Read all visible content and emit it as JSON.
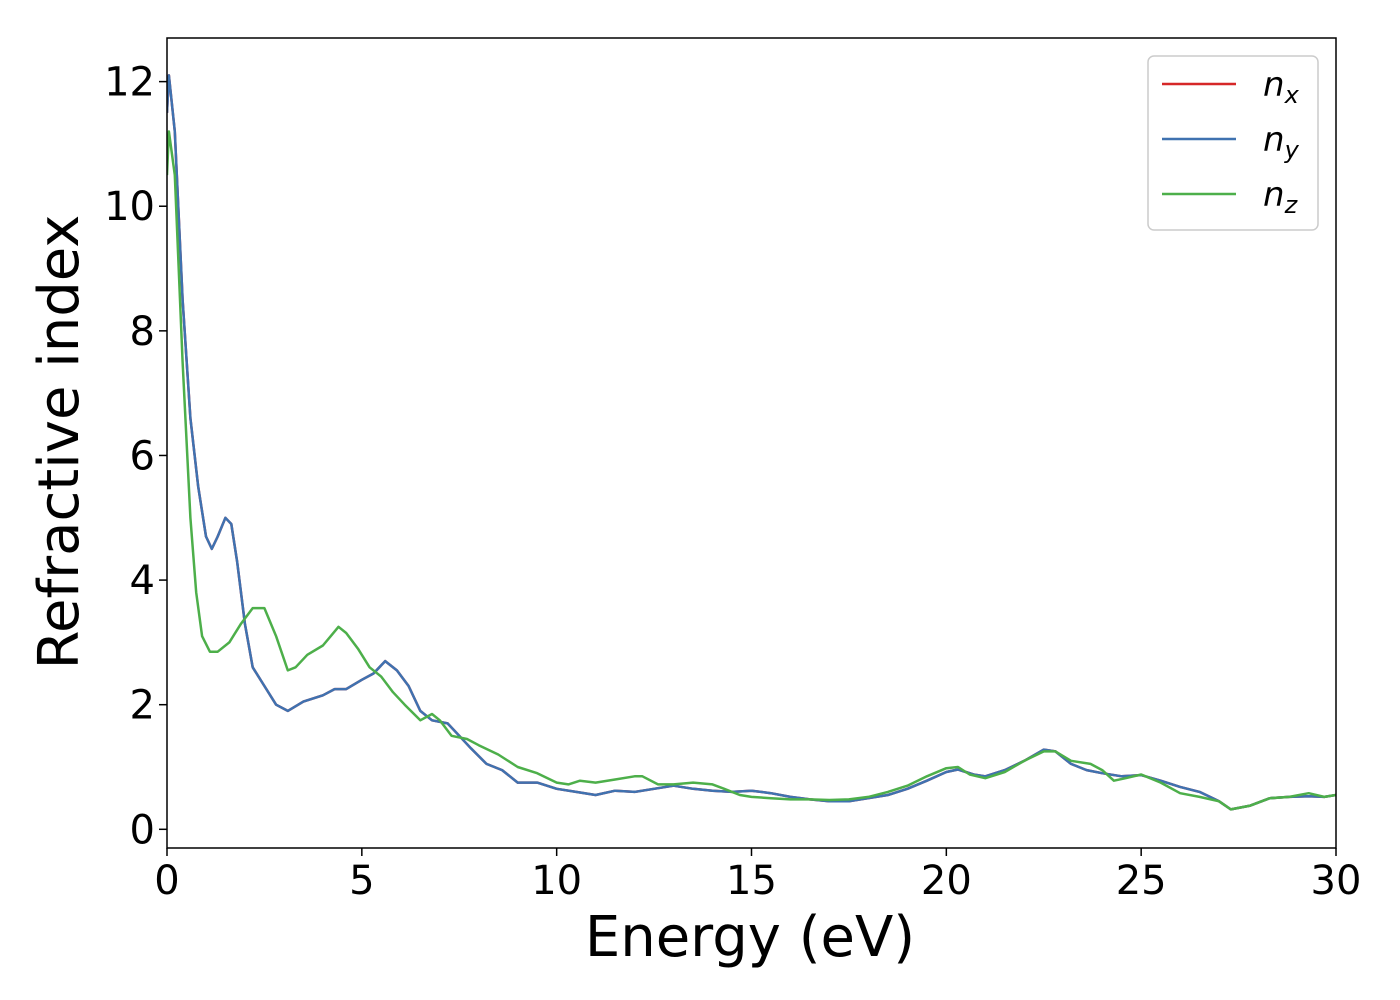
{
  "chart_data": {
    "type": "line",
    "title": "",
    "xlabel": "Energy (eV)",
    "ylabel": "Refractive index",
    "xlim": [
      0,
      30
    ],
    "ylim": [
      -0.3,
      12.7
    ],
    "xticks": [
      0,
      5,
      10,
      15,
      20,
      25,
      30
    ],
    "yticks": [
      0,
      2,
      4,
      6,
      8,
      10,
      12
    ],
    "grid": false,
    "legend_position": "top-right",
    "series": [
      {
        "name": "n",
        "subscript": "x",
        "color": "#d62728",
        "points": [
          [
            0,
            11.5
          ],
          [
            0.05,
            12.1
          ],
          [
            0.2,
            11.2
          ],
          [
            0.4,
            8.5
          ],
          [
            0.6,
            6.6
          ],
          [
            0.8,
            5.5
          ],
          [
            1.0,
            4.7
          ],
          [
            1.15,
            4.5
          ],
          [
            1.3,
            4.7
          ],
          [
            1.5,
            5.0
          ],
          [
            1.65,
            4.9
          ],
          [
            1.8,
            4.3
          ],
          [
            2.0,
            3.3
          ],
          [
            2.2,
            2.6
          ],
          [
            2.5,
            2.3
          ],
          [
            2.8,
            2.0
          ],
          [
            3.1,
            1.9
          ],
          [
            3.5,
            2.05
          ],
          [
            4.0,
            2.15
          ],
          [
            4.3,
            2.25
          ],
          [
            4.6,
            2.25
          ],
          [
            5.0,
            2.4
          ],
          [
            5.3,
            2.5
          ],
          [
            5.6,
            2.7
          ],
          [
            5.9,
            2.55
          ],
          [
            6.2,
            2.3
          ],
          [
            6.5,
            1.9
          ],
          [
            6.8,
            1.75
          ],
          [
            7.2,
            1.7
          ],
          [
            7.5,
            1.5
          ],
          [
            7.8,
            1.3
          ],
          [
            8.2,
            1.05
          ],
          [
            8.6,
            0.95
          ],
          [
            9.0,
            0.75
          ],
          [
            9.5,
            0.75
          ],
          [
            10.0,
            0.65
          ],
          [
            10.5,
            0.6
          ],
          [
            11.0,
            0.55
          ],
          [
            11.5,
            0.62
          ],
          [
            12.0,
            0.6
          ],
          [
            12.5,
            0.65
          ],
          [
            13.0,
            0.7
          ],
          [
            13.5,
            0.65
          ],
          [
            14.0,
            0.62
          ],
          [
            14.5,
            0.6
          ],
          [
            15.0,
            0.62
          ],
          [
            15.5,
            0.58
          ],
          [
            16.0,
            0.52
          ],
          [
            16.5,
            0.48
          ],
          [
            17.0,
            0.45
          ],
          [
            17.5,
            0.45
          ],
          [
            18.0,
            0.5
          ],
          [
            18.5,
            0.55
          ],
          [
            19.0,
            0.65
          ],
          [
            19.5,
            0.78
          ],
          [
            20.0,
            0.92
          ],
          [
            20.3,
            0.96
          ],
          [
            20.7,
            0.88
          ],
          [
            21.0,
            0.85
          ],
          [
            21.5,
            0.95
          ],
          [
            22.0,
            1.1
          ],
          [
            22.5,
            1.28
          ],
          [
            22.8,
            1.25
          ],
          [
            23.2,
            1.05
          ],
          [
            23.6,
            0.95
          ],
          [
            24.0,
            0.9
          ],
          [
            24.5,
            0.85
          ],
          [
            25.0,
            0.87
          ],
          [
            25.5,
            0.78
          ],
          [
            26.0,
            0.68
          ],
          [
            26.5,
            0.6
          ],
          [
            27.0,
            0.45
          ],
          [
            27.3,
            0.32
          ],
          [
            27.8,
            0.38
          ],
          [
            28.3,
            0.5
          ],
          [
            28.8,
            0.52
          ],
          [
            29.3,
            0.53
          ],
          [
            29.7,
            0.52
          ],
          [
            30.0,
            0.55
          ]
        ]
      },
      {
        "name": "n",
        "subscript": "y",
        "color": "#3f72b0",
        "points": [
          [
            0,
            11.5
          ],
          [
            0.05,
            12.1
          ],
          [
            0.2,
            11.2
          ],
          [
            0.4,
            8.5
          ],
          [
            0.6,
            6.6
          ],
          [
            0.8,
            5.5
          ],
          [
            1.0,
            4.7
          ],
          [
            1.15,
            4.5
          ],
          [
            1.3,
            4.7
          ],
          [
            1.5,
            5.0
          ],
          [
            1.65,
            4.9
          ],
          [
            1.8,
            4.3
          ],
          [
            2.0,
            3.3
          ],
          [
            2.2,
            2.6
          ],
          [
            2.5,
            2.3
          ],
          [
            2.8,
            2.0
          ],
          [
            3.1,
            1.9
          ],
          [
            3.5,
            2.05
          ],
          [
            4.0,
            2.15
          ],
          [
            4.3,
            2.25
          ],
          [
            4.6,
            2.25
          ],
          [
            5.0,
            2.4
          ],
          [
            5.3,
            2.5
          ],
          [
            5.6,
            2.7
          ],
          [
            5.9,
            2.55
          ],
          [
            6.2,
            2.3
          ],
          [
            6.5,
            1.9
          ],
          [
            6.8,
            1.75
          ],
          [
            7.2,
            1.7
          ],
          [
            7.5,
            1.5
          ],
          [
            7.8,
            1.3
          ],
          [
            8.2,
            1.05
          ],
          [
            8.6,
            0.95
          ],
          [
            9.0,
            0.75
          ],
          [
            9.5,
            0.75
          ],
          [
            10.0,
            0.65
          ],
          [
            10.5,
            0.6
          ],
          [
            11.0,
            0.55
          ],
          [
            11.5,
            0.62
          ],
          [
            12.0,
            0.6
          ],
          [
            12.5,
            0.65
          ],
          [
            13.0,
            0.7
          ],
          [
            13.5,
            0.65
          ],
          [
            14.0,
            0.62
          ],
          [
            14.5,
            0.6
          ],
          [
            15.0,
            0.62
          ],
          [
            15.5,
            0.58
          ],
          [
            16.0,
            0.52
          ],
          [
            16.5,
            0.48
          ],
          [
            17.0,
            0.45
          ],
          [
            17.5,
            0.45
          ],
          [
            18.0,
            0.5
          ],
          [
            18.5,
            0.55
          ],
          [
            19.0,
            0.65
          ],
          [
            19.5,
            0.78
          ],
          [
            20.0,
            0.92
          ],
          [
            20.3,
            0.96
          ],
          [
            20.7,
            0.88
          ],
          [
            21.0,
            0.85
          ],
          [
            21.5,
            0.95
          ],
          [
            22.0,
            1.1
          ],
          [
            22.5,
            1.28
          ],
          [
            22.8,
            1.25
          ],
          [
            23.2,
            1.05
          ],
          [
            23.6,
            0.95
          ],
          [
            24.0,
            0.9
          ],
          [
            24.5,
            0.85
          ],
          [
            25.0,
            0.87
          ],
          [
            25.5,
            0.78
          ],
          [
            26.0,
            0.68
          ],
          [
            26.5,
            0.6
          ],
          [
            27.0,
            0.45
          ],
          [
            27.3,
            0.32
          ],
          [
            27.8,
            0.38
          ],
          [
            28.3,
            0.5
          ],
          [
            28.8,
            0.52
          ],
          [
            29.3,
            0.53
          ],
          [
            29.7,
            0.52
          ],
          [
            30.0,
            0.55
          ]
        ]
      },
      {
        "name": "n",
        "subscript": "z",
        "color": "#4daf4a",
        "points": [
          [
            0,
            10.5
          ],
          [
            0.05,
            11.2
          ],
          [
            0.2,
            10.5
          ],
          [
            0.4,
            7.5
          ],
          [
            0.6,
            5.0
          ],
          [
            0.75,
            3.8
          ],
          [
            0.9,
            3.1
          ],
          [
            1.1,
            2.85
          ],
          [
            1.3,
            2.85
          ],
          [
            1.6,
            3.0
          ],
          [
            1.9,
            3.3
          ],
          [
            2.2,
            3.55
          ],
          [
            2.5,
            3.55
          ],
          [
            2.8,
            3.1
          ],
          [
            3.1,
            2.55
          ],
          [
            3.3,
            2.6
          ],
          [
            3.6,
            2.8
          ],
          [
            4.0,
            2.95
          ],
          [
            4.2,
            3.1
          ],
          [
            4.4,
            3.25
          ],
          [
            4.6,
            3.15
          ],
          [
            4.9,
            2.9
          ],
          [
            5.2,
            2.6
          ],
          [
            5.5,
            2.45
          ],
          [
            5.8,
            2.2
          ],
          [
            6.1,
            2.0
          ],
          [
            6.5,
            1.75
          ],
          [
            6.8,
            1.85
          ],
          [
            7.0,
            1.75
          ],
          [
            7.3,
            1.5
          ],
          [
            7.7,
            1.45
          ],
          [
            8.0,
            1.35
          ],
          [
            8.5,
            1.2
          ],
          [
            9.0,
            1.0
          ],
          [
            9.5,
            0.9
          ],
          [
            10.0,
            0.75
          ],
          [
            10.3,
            0.72
          ],
          [
            10.6,
            0.78
          ],
          [
            11.0,
            0.75
          ],
          [
            11.5,
            0.8
          ],
          [
            12.0,
            0.85
          ],
          [
            12.2,
            0.85
          ],
          [
            12.6,
            0.72
          ],
          [
            13.0,
            0.72
          ],
          [
            13.5,
            0.75
          ],
          [
            14.0,
            0.72
          ],
          [
            14.3,
            0.65
          ],
          [
            14.7,
            0.55
          ],
          [
            15.0,
            0.52
          ],
          [
            15.5,
            0.5
          ],
          [
            16.0,
            0.48
          ],
          [
            16.5,
            0.48
          ],
          [
            17.0,
            0.47
          ],
          [
            17.5,
            0.48
          ],
          [
            18.0,
            0.52
          ],
          [
            18.5,
            0.6
          ],
          [
            19.0,
            0.7
          ],
          [
            19.5,
            0.85
          ],
          [
            20.0,
            0.98
          ],
          [
            20.3,
            1.0
          ],
          [
            20.6,
            0.88
          ],
          [
            21.0,
            0.82
          ],
          [
            21.5,
            0.92
          ],
          [
            22.0,
            1.1
          ],
          [
            22.5,
            1.25
          ],
          [
            22.8,
            1.25
          ],
          [
            23.2,
            1.1
          ],
          [
            23.7,
            1.05
          ],
          [
            24.0,
            0.95
          ],
          [
            24.3,
            0.78
          ],
          [
            24.6,
            0.82
          ],
          [
            25.0,
            0.88
          ],
          [
            25.5,
            0.75
          ],
          [
            26.0,
            0.58
          ],
          [
            26.5,
            0.52
          ],
          [
            27.0,
            0.45
          ],
          [
            27.3,
            0.32
          ],
          [
            27.8,
            0.38
          ],
          [
            28.3,
            0.5
          ],
          [
            28.8,
            0.52
          ],
          [
            29.3,
            0.58
          ],
          [
            29.7,
            0.52
          ],
          [
            30.0,
            0.55
          ]
        ]
      }
    ]
  }
}
